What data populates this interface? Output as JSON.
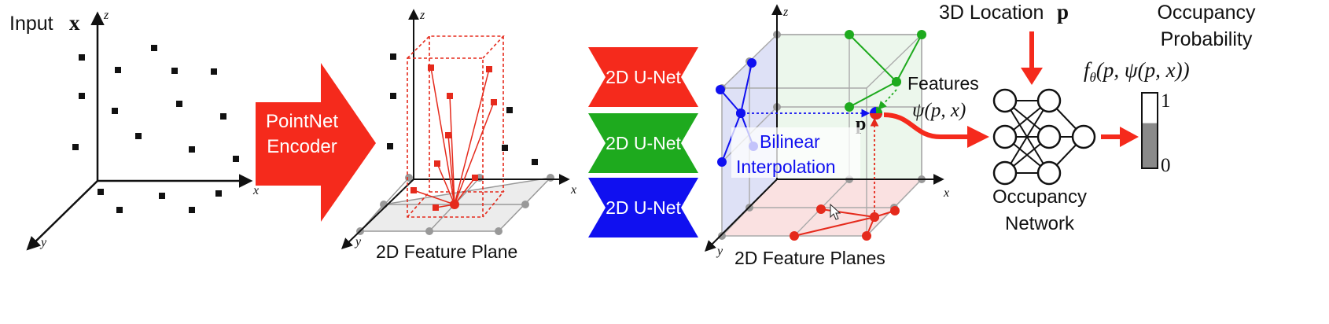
{
  "input": {
    "label": "Input",
    "symbol": "x"
  },
  "axes": {
    "x": "x",
    "y": "y",
    "z": "z"
  },
  "encoder": {
    "line1": "PointNet",
    "line2": "Encoder",
    "color": "#f52a1c"
  },
  "plane_single": {
    "caption": "2D Feature Plane"
  },
  "unets": [
    {
      "label": "2D U-Net",
      "color": "#f52a1c"
    },
    {
      "label": "2D U-Net",
      "color": "#1eaa1e"
    },
    {
      "label": "2D U-Net",
      "color": "#1010f0"
    }
  ],
  "planes_triple": {
    "caption": "2D Feature Planes",
    "interp_line1": "Bilinear",
    "interp_line2": "Interpolation",
    "point_symbol": "p"
  },
  "features": {
    "label": "Features",
    "formula": "ψ(p, x)"
  },
  "location": {
    "label": "3D Location",
    "symbol": "p"
  },
  "network": {
    "line1": "Occupancy",
    "line2": "Network"
  },
  "probability": {
    "line1": "Occupancy",
    "line2": "Probability",
    "formula": "f",
    "formula_sub": "θ",
    "formula_rest": "(p, ψ(p, x))",
    "max_label": "1",
    "min_label": "0",
    "value": 0.6
  }
}
